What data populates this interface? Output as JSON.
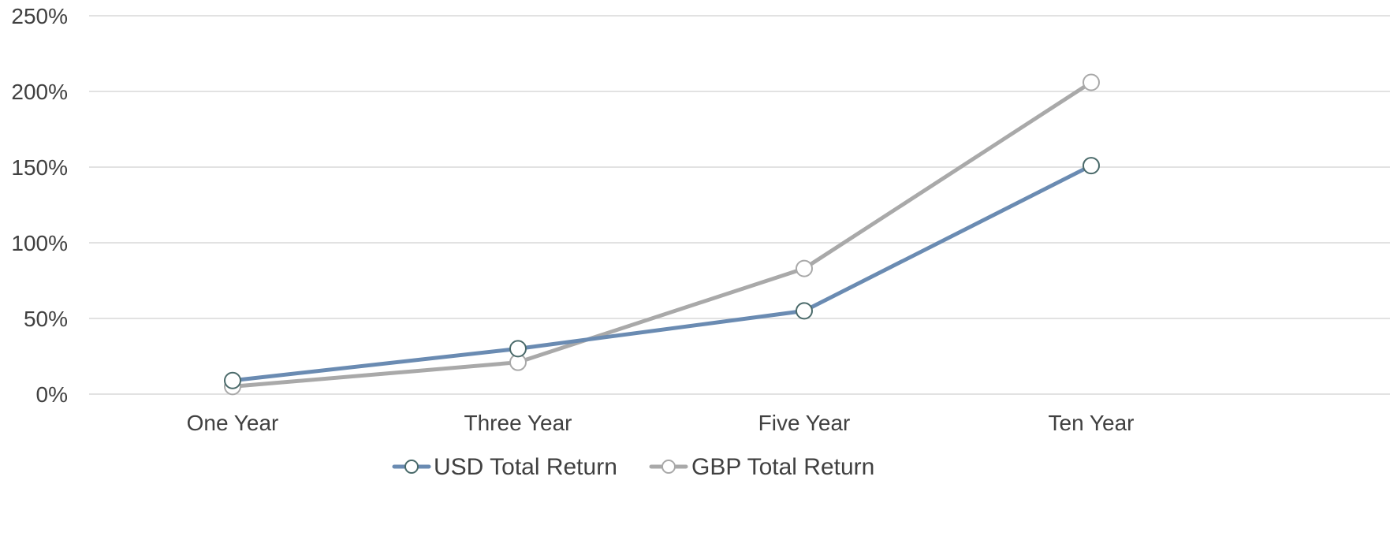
{
  "chart_data": {
    "type": "line",
    "title": "",
    "xlabel": "",
    "ylabel": "",
    "categories": [
      "One Year",
      "Three Year",
      "Five Year",
      "Ten Year"
    ],
    "ylim": [
      0,
      250
    ],
    "yticks": [
      0,
      50,
      100,
      150,
      200,
      250
    ],
    "ytick_labels": [
      "0%",
      "50%",
      "100%",
      "150%",
      "200%",
      "250%"
    ],
    "y_unit": "%",
    "grid": true,
    "legend_position": "bottom",
    "series": [
      {
        "name": "USD Total Return",
        "values": [
          9,
          30,
          55,
          151
        ],
        "color": "#6a8bb2",
        "marker_stroke": "#4a6a6a",
        "marker_fill": "#ffffff"
      },
      {
        "name": "GBP Total Return",
        "values": [
          5,
          21,
          83,
          206
        ],
        "color": "#a9a9a9",
        "marker_stroke": "#a9a9a9",
        "marker_fill": "#ffffff"
      }
    ]
  }
}
